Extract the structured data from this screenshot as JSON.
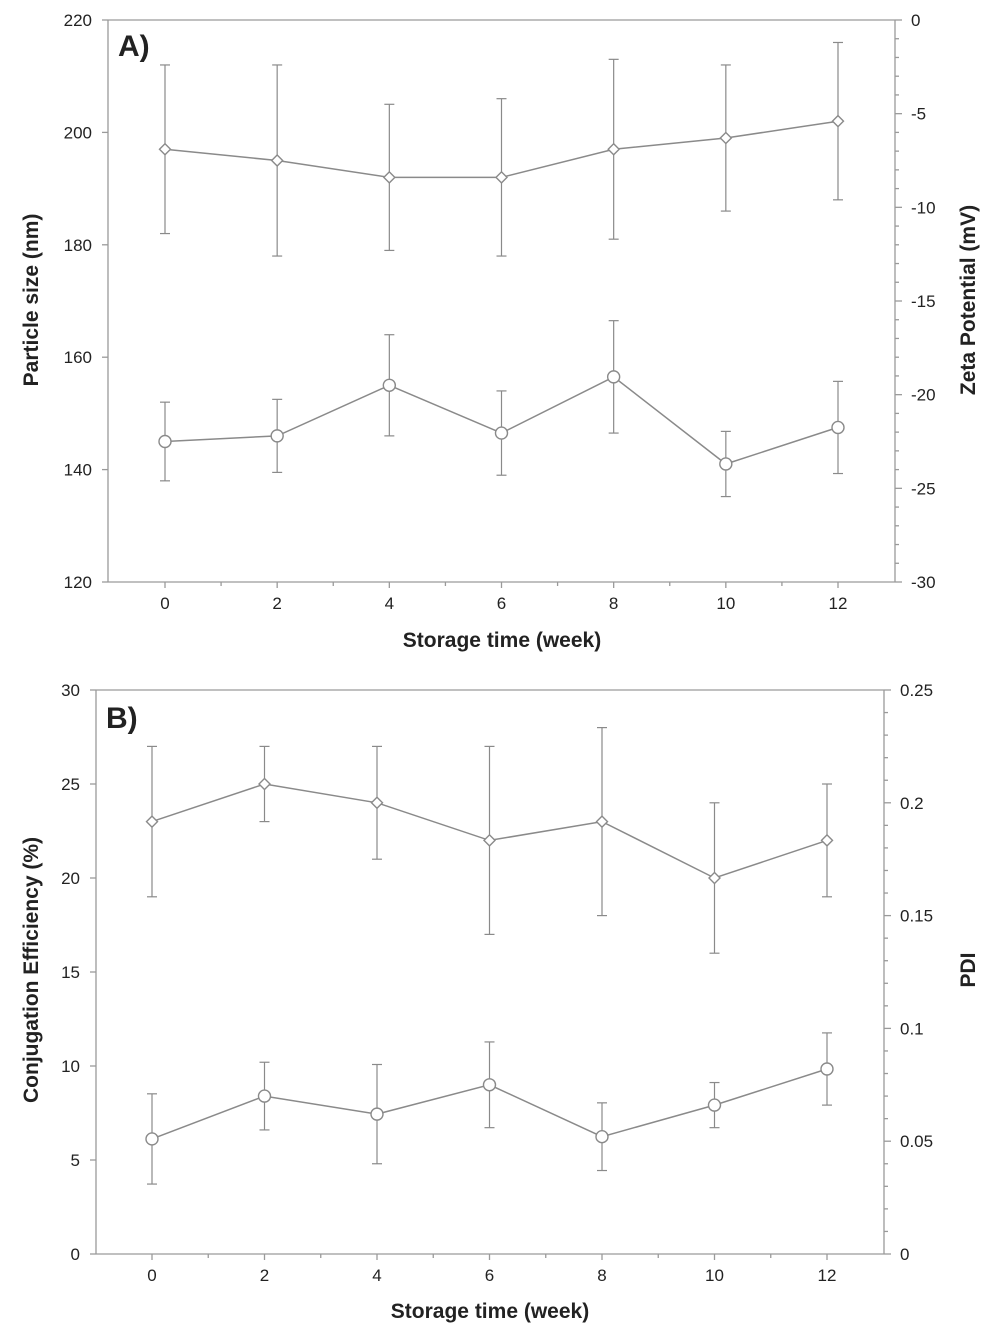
{
  "colors": {
    "line": "#8a8a8a",
    "axis": "#9a9a9a",
    "marker_fill": "#ffffff",
    "text": "#222222"
  },
  "chart_data": [
    {
      "type": "line",
      "panel_label": "A)",
      "xlabel": "Storage time (week)",
      "ylabel": "Particle size (nm)",
      "y2label": "Zeta Potential (mV)",
      "x": [
        0,
        2,
        4,
        6,
        8,
        10,
        12
      ],
      "x_ticks": [
        "0",
        "2",
        "4",
        "6",
        "8",
        "10",
        "12"
      ],
      "xlim": [
        -1,
        13
      ],
      "ylim": [
        120,
        220
      ],
      "y_ticks": [
        "120",
        "140",
        "160",
        "180",
        "200",
        "220"
      ],
      "y2lim": [
        -30,
        0
      ],
      "y2_ticks": [
        "-30",
        "-25",
        "-20",
        "-15",
        "-10",
        "-5",
        "0"
      ],
      "grid": false,
      "series": [
        {
          "axis": "left",
          "marker": "diamond",
          "values": [
            197,
            195,
            192,
            192,
            197,
            199,
            202
          ],
          "err": [
            15,
            17,
            13,
            14,
            16,
            13,
            14
          ]
        },
        {
          "axis": "left",
          "marker": "circle",
          "values": [
            145,
            146,
            155,
            146.5,
            156.5,
            141,
            147.5
          ],
          "err": [
            7,
            6.5,
            9,
            7.5,
            10,
            5.8,
            8.2
          ]
        }
      ]
    },
    {
      "type": "line",
      "panel_label": "B)",
      "xlabel": "Storage time (week)",
      "ylabel": "Conjugation Efficiency (%)",
      "y2label": "PDI",
      "x": [
        0,
        2,
        4,
        6,
        8,
        10,
        12
      ],
      "x_ticks": [
        "0",
        "2",
        "4",
        "6",
        "8",
        "10",
        "12"
      ],
      "xlim": [
        -1,
        13
      ],
      "ylim": [
        0,
        30
      ],
      "y_ticks": [
        "0",
        "5",
        "10",
        "15",
        "20",
        "25",
        "30"
      ],
      "y2lim": [
        0,
        0.25
      ],
      "y2_ticks": [
        "0",
        "0.05",
        "0.1",
        "0.15",
        "0.2",
        "0.25"
      ],
      "grid": false,
      "series": [
        {
          "axis": "left",
          "marker": "diamond",
          "values": [
            23,
            25,
            24,
            22,
            23,
            20,
            22
          ],
          "err": [
            4,
            2,
            3,
            5,
            5,
            4,
            3
          ]
        },
        {
          "axis": "right",
          "marker": "circle",
          "values": [
            0.051,
            0.07,
            0.062,
            0.075,
            0.052,
            0.066,
            0.082
          ],
          "err": [
            0.02,
            0.015,
            0.022,
            0.019,
            0.015,
            0.01,
            0.016
          ]
        }
      ]
    }
  ]
}
